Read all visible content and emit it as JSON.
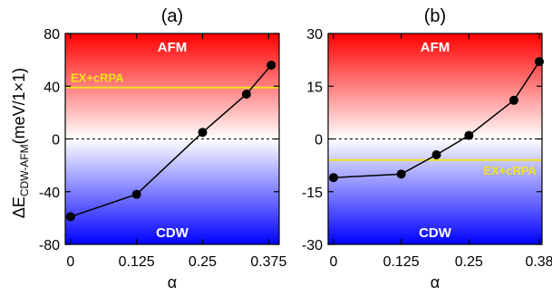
{
  "figure": {
    "ylabel_main": "ΔE",
    "ylabel_sub": "CDW-AFM",
    "ylabel_unit": "(meV/1×1)"
  },
  "colors": {
    "afm_top": "#ff0000",
    "cdw_bottom": "#0000ff",
    "reference_line": "#f2e21c",
    "series": "#000000"
  },
  "chart_data": [
    {
      "type": "line",
      "panel_label": "(a)",
      "xlabel": "α",
      "xlim": [
        -0.01,
        0.395
      ],
      "ylim": [
        -80,
        80
      ],
      "x_ticks": [
        0,
        0.125,
        0.25,
        0.375
      ],
      "x_tick_labels": [
        "0",
        "0.125",
        "0.25",
        "0.375"
      ],
      "y_ticks": [
        -80,
        -40,
        0,
        40,
        80
      ],
      "y_tick_labels": [
        "-80",
        "-40",
        "0",
        "40",
        "80"
      ],
      "top_region_label": "AFM",
      "bottom_region_label": "CDW",
      "zero_line": 0,
      "reference": {
        "label": "EX+cRPA",
        "y": 39
      },
      "series": [
        {
          "x": [
            0,
            0.125,
            0.25,
            0.333,
            0.38
          ],
          "y": [
            -59,
            -42,
            5,
            34,
            56
          ]
        }
      ]
    },
    {
      "type": "line",
      "panel_label": "(b)",
      "xlabel": "α",
      "xlim": [
        -0.01,
        0.385
      ],
      "ylim": [
        -30,
        30
      ],
      "x_ticks": [
        0,
        0.125,
        0.25,
        0.38
      ],
      "x_tick_labels": [
        "0",
        "0.125",
        "0.25",
        "0.38"
      ],
      "y_ticks": [
        -30,
        -15,
        0,
        15,
        30
      ],
      "y_tick_labels": [
        "-30",
        "-15",
        "0",
        "15",
        "30"
      ],
      "top_region_label": "AFM",
      "bottom_region_label": "CDW",
      "zero_line": 0,
      "reference": {
        "label": "EX+cRPA",
        "y": -6
      },
      "series": [
        {
          "x": [
            0,
            0.125,
            0.19,
            0.25,
            0.333,
            0.38
          ],
          "y": [
            -11,
            -10,
            -4.5,
            1,
            11,
            22
          ]
        }
      ]
    }
  ]
}
